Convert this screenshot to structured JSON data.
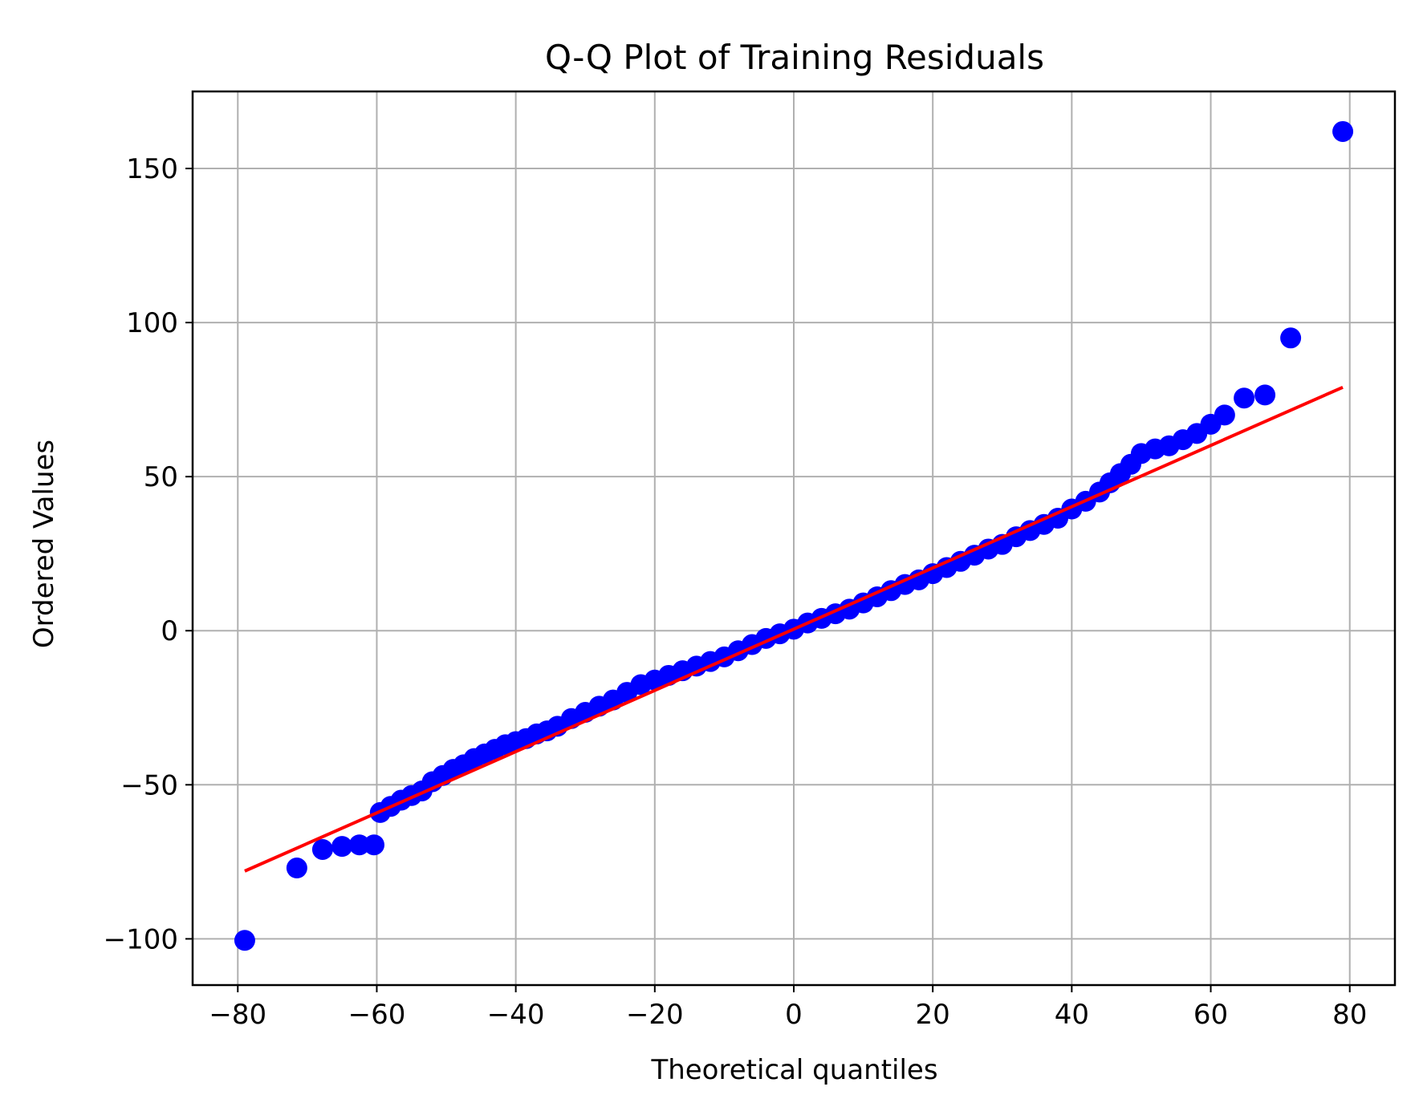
{
  "chart_data": {
    "type": "scatter",
    "title": "Q-Q Plot of Training Residuals",
    "xlabel": "Theoretical quantiles",
    "ylabel": "Ordered Values",
    "xlim": [
      -86.5,
      86.5
    ],
    "ylim": [
      -115,
      175
    ],
    "x_ticks": [
      -80,
      -60,
      -40,
      -20,
      0,
      20,
      40,
      60,
      80
    ],
    "x_tick_labels": [
      "−80",
      "−60",
      "−40",
      "−20",
      "0",
      "20",
      "40",
      "60",
      "80"
    ],
    "y_ticks": [
      -100,
      -50,
      0,
      50,
      100,
      150
    ],
    "y_tick_labels": [
      "−100",
      "−50",
      "0",
      "50",
      "100",
      "150"
    ],
    "grid": true,
    "legend": "none",
    "colors": {
      "points": "#0000ff",
      "fit_line": "#ff0000",
      "grid": "#b0b0b0"
    },
    "series": [
      {
        "kind": "points",
        "x": [
          -79,
          -71.5,
          -67.8,
          -65,
          -62.5,
          -60.4,
          -59.5,
          -58,
          -56.5,
          -55,
          -53.5,
          -52,
          -50.5,
          -49,
          -47.5,
          -46,
          -44.5,
          -43,
          -41.5,
          -40,
          -38.5,
          -37,
          -35.5,
          -34,
          -32,
          -30,
          -28,
          -26,
          -24,
          -22,
          -20,
          -18,
          -16,
          -14,
          -12,
          -10,
          -8,
          -6,
          -4,
          -2,
          0,
          2,
          4,
          6,
          8,
          10,
          12,
          14,
          16,
          18,
          20,
          22,
          24,
          26,
          28,
          30,
          32,
          34,
          36,
          38,
          40,
          42,
          44,
          45.5,
          47,
          48.5,
          50,
          52,
          54,
          56,
          58,
          60,
          62,
          64.8,
          67.8,
          71.5,
          79
        ],
        "y": [
          -100.5,
          -77,
          -71,
          -70,
          -69.5,
          -69.5,
          -59,
          -57,
          -55,
          -53.5,
          -52,
          -49,
          -47,
          -45,
          -43.5,
          -41.5,
          -40,
          -38.5,
          -37,
          -36,
          -35,
          -33.5,
          -32.5,
          -31,
          -28.5,
          -26.5,
          -24.5,
          -22.5,
          -20,
          -17.5,
          -16,
          -14.5,
          -13,
          -11.5,
          -10,
          -8.5,
          -6.5,
          -4.5,
          -2.5,
          -1,
          0.5,
          2.5,
          4,
          5.5,
          7,
          9,
          11,
          13,
          15,
          16.5,
          18.5,
          20.5,
          22.5,
          24.5,
          26.5,
          28,
          30.5,
          32.5,
          34.5,
          36.5,
          39.5,
          42,
          45,
          48,
          51,
          54,
          57.5,
          59,
          60,
          62,
          64,
          67,
          70,
          75.5,
          76.5,
          95,
          162
        ]
      },
      {
        "kind": "fit-line",
        "x": [
          -79,
          79
        ],
        "y": [
          -78,
          79
        ]
      }
    ]
  }
}
